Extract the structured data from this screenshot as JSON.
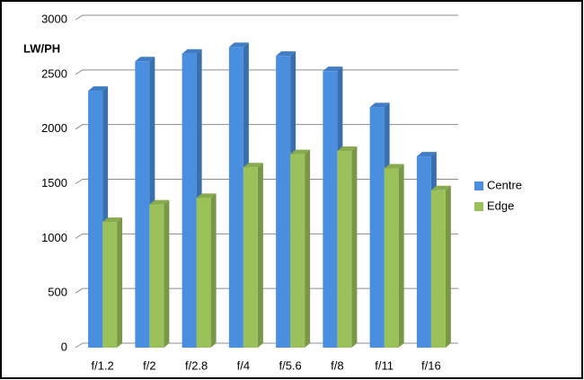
{
  "chart_data": {
    "type": "bar3d",
    "y_label": "LW/PH",
    "categories": [
      "f/1.2",
      "f/2",
      "f/2.8",
      "f/4",
      "f/5.6",
      "f/8",
      "f/11",
      "f/16"
    ],
    "series": [
      {
        "name": "Centre",
        "color": "#4a8ee0",
        "values": [
          2350,
          2620,
          2690,
          2750,
          2670,
          2530,
          2200,
          1750
        ]
      },
      {
        "name": "Edge",
        "color": "#9bc25a",
        "values": [
          1150,
          1310,
          1370,
          1650,
          1770,
          1800,
          1640,
          1440
        ]
      }
    ],
    "ylim": [
      0,
      3000
    ],
    "yticks": [
      0,
      500,
      1000,
      1500,
      2000,
      2500,
      3000
    ],
    "grid": true,
    "legend": "right"
  }
}
